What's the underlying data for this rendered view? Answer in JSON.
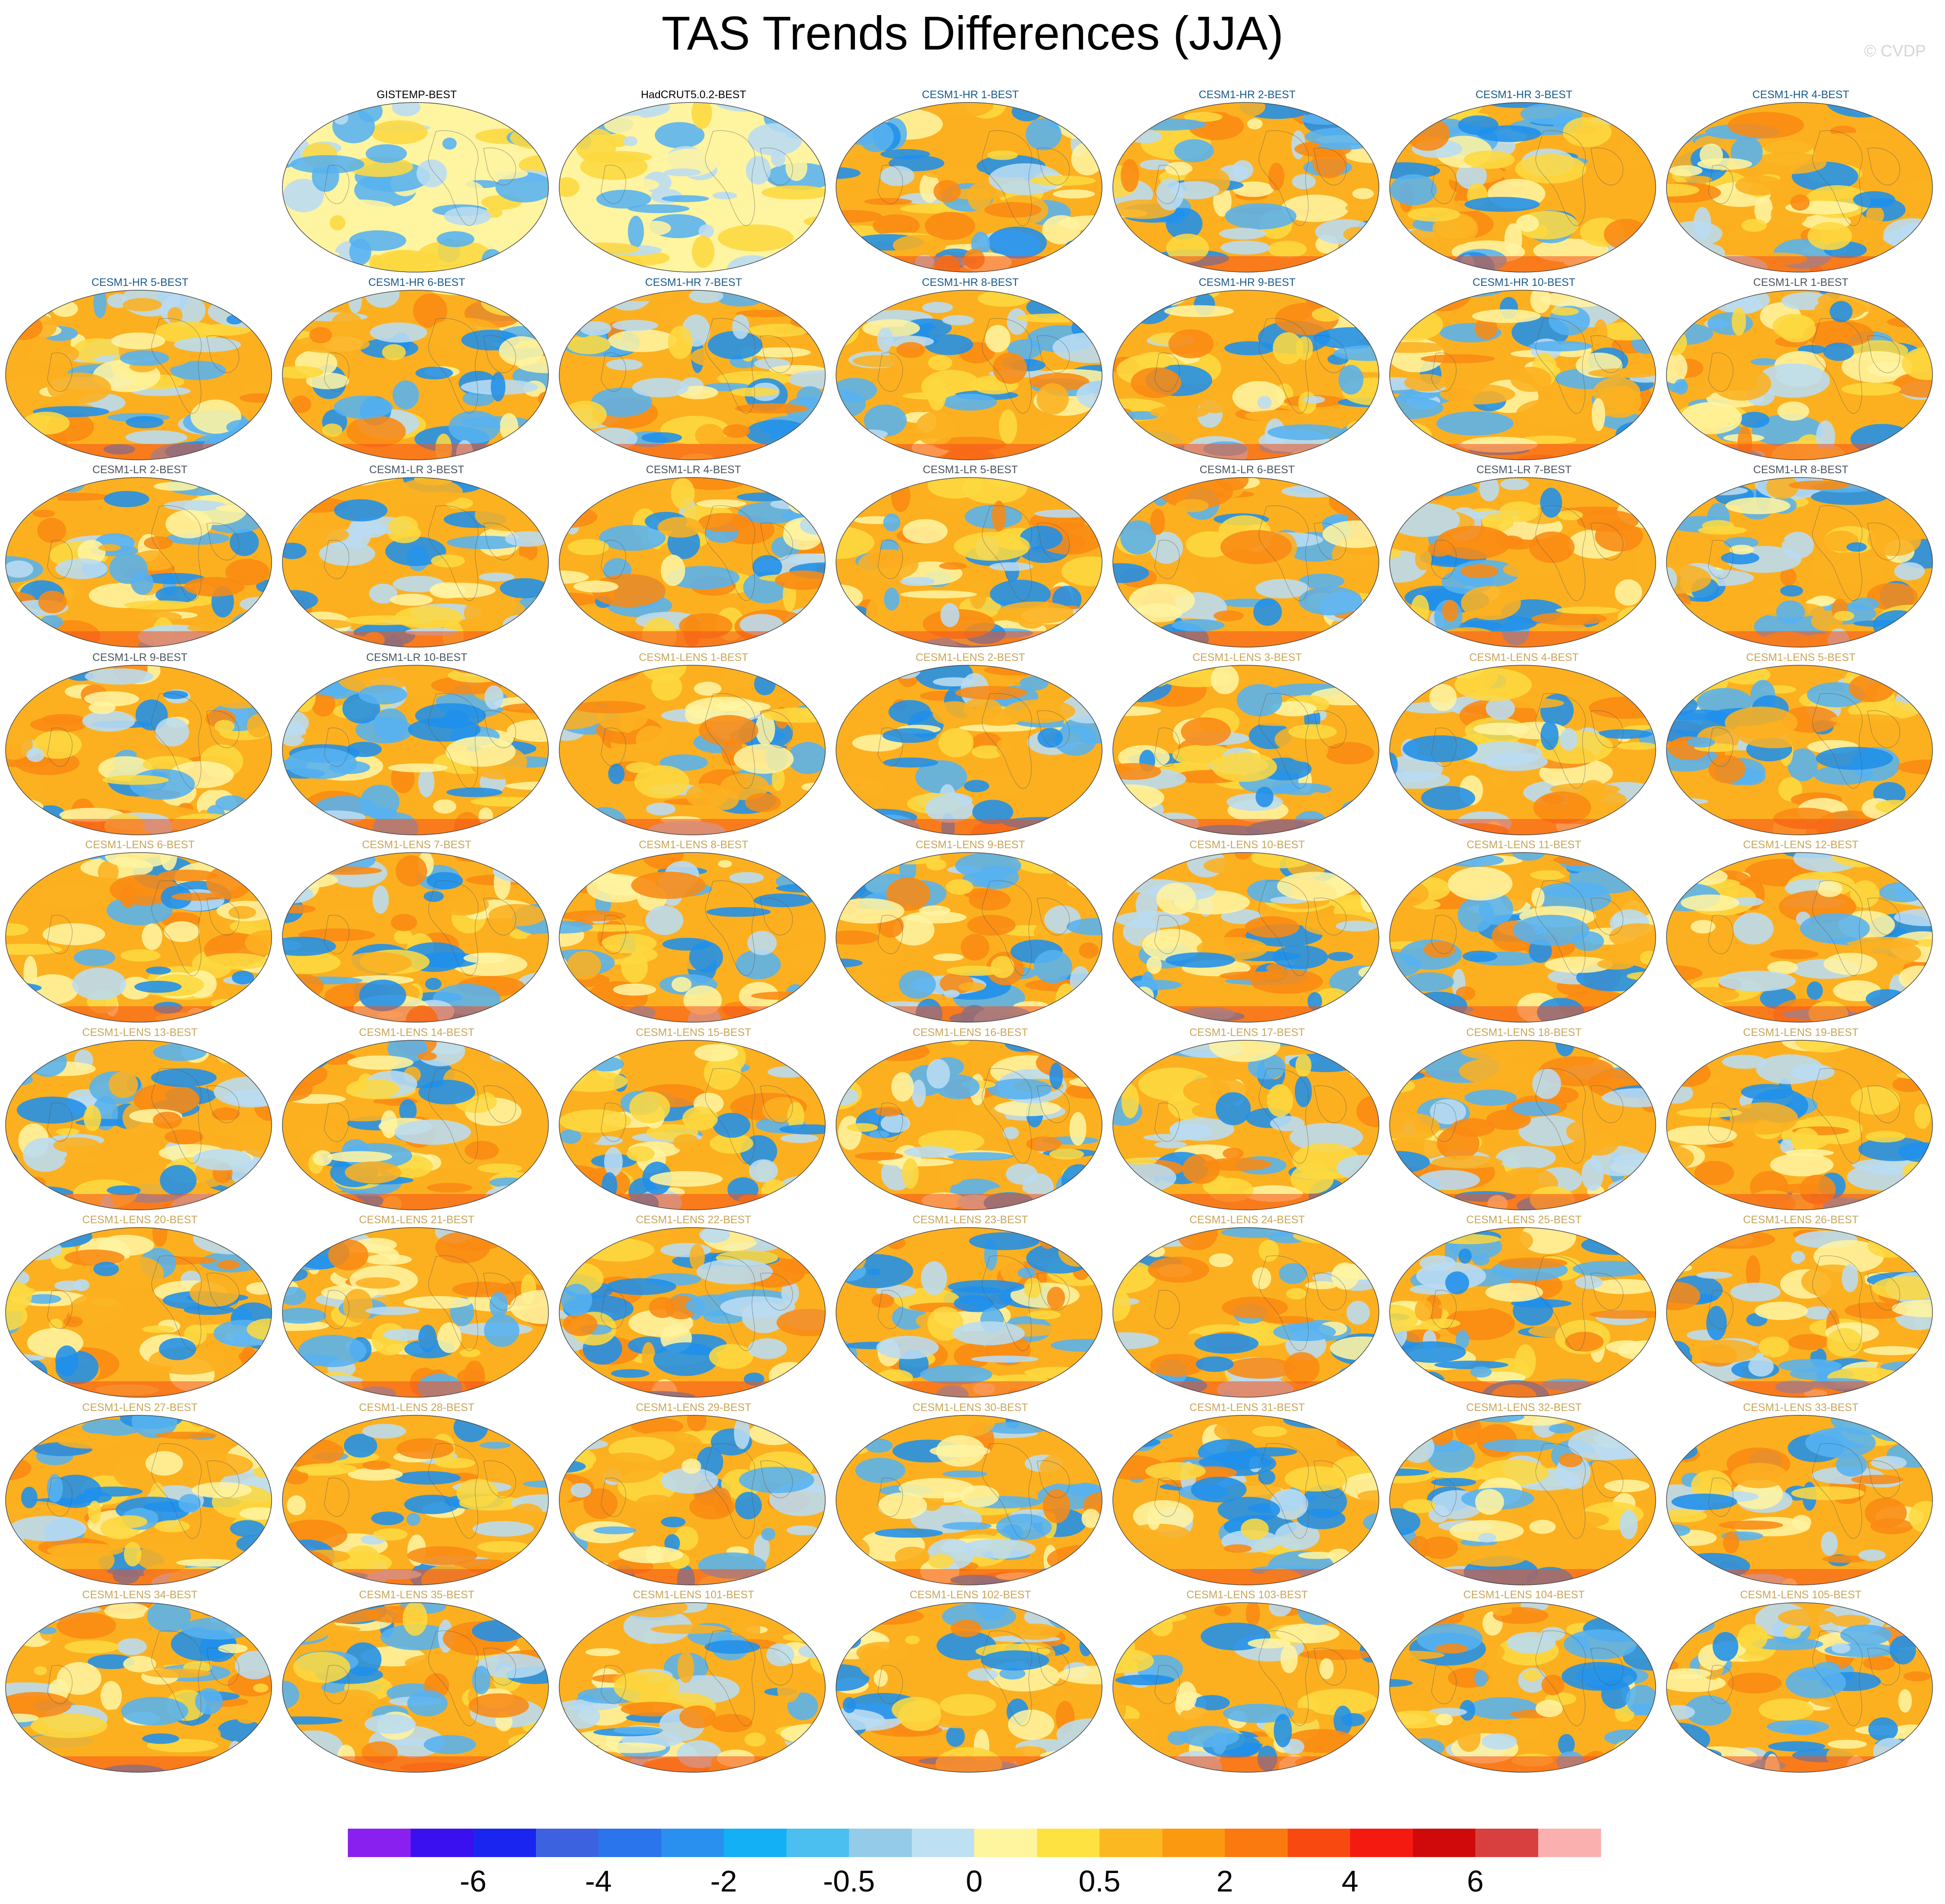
{
  "title": "TAS Trends Differences (JJA)",
  "copyright": "© CVDP",
  "grid": {
    "columns": 7,
    "rows": 9,
    "first_row_empty_columns": 1
  },
  "title_colors": {
    "obs": "#000000",
    "CESM1-HR": "#1a5a8a",
    "CESM1-LR": "#4a5560",
    "CESM1-LENS": "#c8a65a"
  },
  "panels": [
    {
      "title": "GISTEMP-BEST",
      "group": "obs"
    },
    {
      "title": "HadCRUT5.0.2-BEST",
      "group": "obs"
    },
    {
      "title": "CESM1-HR 1-BEST",
      "group": "CESM1-HR"
    },
    {
      "title": "CESM1-HR 2-BEST",
      "group": "CESM1-HR"
    },
    {
      "title": "CESM1-HR 3-BEST",
      "group": "CESM1-HR"
    },
    {
      "title": "CESM1-HR 4-BEST",
      "group": "CESM1-HR"
    },
    {
      "title": "CESM1-HR 5-BEST",
      "group": "CESM1-HR"
    },
    {
      "title": "CESM1-HR 6-BEST",
      "group": "CESM1-HR"
    },
    {
      "title": "CESM1-HR 7-BEST",
      "group": "CESM1-HR"
    },
    {
      "title": "CESM1-HR 8-BEST",
      "group": "CESM1-HR"
    },
    {
      "title": "CESM1-HR 9-BEST",
      "group": "CESM1-HR"
    },
    {
      "title": "CESM1-HR 10-BEST",
      "group": "CESM1-HR"
    },
    {
      "title": "CESM1-LR 1-BEST",
      "group": "CESM1-LR"
    },
    {
      "title": "CESM1-LR 2-BEST",
      "group": "CESM1-LR"
    },
    {
      "title": "CESM1-LR 3-BEST",
      "group": "CESM1-LR"
    },
    {
      "title": "CESM1-LR 4-BEST",
      "group": "CESM1-LR"
    },
    {
      "title": "CESM1-LR 5-BEST",
      "group": "CESM1-LR"
    },
    {
      "title": "CESM1-LR 6-BEST",
      "group": "CESM1-LR"
    },
    {
      "title": "CESM1-LR 7-BEST",
      "group": "CESM1-LR"
    },
    {
      "title": "CESM1-LR 8-BEST",
      "group": "CESM1-LR"
    },
    {
      "title": "CESM1-LR 9-BEST",
      "group": "CESM1-LR"
    },
    {
      "title": "CESM1-LR 10-BEST",
      "group": "CESM1-LR"
    },
    {
      "title": "CESM1-LENS 1-BEST",
      "group": "CESM1-LENS"
    },
    {
      "title": "CESM1-LENS 2-BEST",
      "group": "CESM1-LENS"
    },
    {
      "title": "CESM1-LENS 3-BEST",
      "group": "CESM1-LENS"
    },
    {
      "title": "CESM1-LENS 4-BEST",
      "group": "CESM1-LENS"
    },
    {
      "title": "CESM1-LENS 5-BEST",
      "group": "CESM1-LENS"
    },
    {
      "title": "CESM1-LENS 6-BEST",
      "group": "CESM1-LENS"
    },
    {
      "title": "CESM1-LENS 7-BEST",
      "group": "CESM1-LENS"
    },
    {
      "title": "CESM1-LENS 8-BEST",
      "group": "CESM1-LENS"
    },
    {
      "title": "CESM1-LENS 9-BEST",
      "group": "CESM1-LENS"
    },
    {
      "title": "CESM1-LENS 10-BEST",
      "group": "CESM1-LENS"
    },
    {
      "title": "CESM1-LENS 11-BEST",
      "group": "CESM1-LENS"
    },
    {
      "title": "CESM1-LENS 12-BEST",
      "group": "CESM1-LENS"
    },
    {
      "title": "CESM1-LENS 13-BEST",
      "group": "CESM1-LENS"
    },
    {
      "title": "CESM1-LENS 14-BEST",
      "group": "CESM1-LENS"
    },
    {
      "title": "CESM1-LENS 15-BEST",
      "group": "CESM1-LENS"
    },
    {
      "title": "CESM1-LENS 16-BEST",
      "group": "CESM1-LENS"
    },
    {
      "title": "CESM1-LENS 17-BEST",
      "group": "CESM1-LENS"
    },
    {
      "title": "CESM1-LENS 18-BEST",
      "group": "CESM1-LENS"
    },
    {
      "title": "CESM1-LENS 19-BEST",
      "group": "CESM1-LENS"
    },
    {
      "title": "CESM1-LENS 20-BEST",
      "group": "CESM1-LENS"
    },
    {
      "title": "CESM1-LENS 21-BEST",
      "group": "CESM1-LENS"
    },
    {
      "title": "CESM1-LENS 22-BEST",
      "group": "CESM1-LENS"
    },
    {
      "title": "CESM1-LENS 23-BEST",
      "group": "CESM1-LENS"
    },
    {
      "title": "CESM1-LENS 24-BEST",
      "group": "CESM1-LENS"
    },
    {
      "title": "CESM1-LENS 25-BEST",
      "group": "CESM1-LENS"
    },
    {
      "title": "CESM1-LENS 26-BEST",
      "group": "CESM1-LENS"
    },
    {
      "title": "CESM1-LENS 27-BEST",
      "group": "CESM1-LENS"
    },
    {
      "title": "CESM1-LENS 28-BEST",
      "group": "CESM1-LENS"
    },
    {
      "title": "CESM1-LENS 29-BEST",
      "group": "CESM1-LENS"
    },
    {
      "title": "CESM1-LENS 30-BEST",
      "group": "CESM1-LENS"
    },
    {
      "title": "CESM1-LENS 31-BEST",
      "group": "CESM1-LENS"
    },
    {
      "title": "CESM1-LENS 32-BEST",
      "group": "CESM1-LENS"
    },
    {
      "title": "CESM1-LENS 33-BEST",
      "group": "CESM1-LENS"
    },
    {
      "title": "CESM1-LENS 34-BEST",
      "group": "CESM1-LENS"
    },
    {
      "title": "CESM1-LENS 35-BEST",
      "group": "CESM1-LENS"
    },
    {
      "title": "CESM1-LENS 101-BEST",
      "group": "CESM1-LENS"
    },
    {
      "title": "CESM1-LENS 102-BEST",
      "group": "CESM1-LENS"
    },
    {
      "title": "CESM1-LENS 103-BEST",
      "group": "CESM1-LENS"
    },
    {
      "title": "CESM1-LENS 104-BEST",
      "group": "CESM1-LENS"
    },
    {
      "title": "CESM1-LENS 105-BEST",
      "group": "CESM1-LENS"
    }
  ],
  "colorbar": {
    "colors": [
      "#8a20f0",
      "#3a10f0",
      "#1a25f0",
      "#3c62e0",
      "#2a74ec",
      "#2a90f0",
      "#13b0f5",
      "#4abff0",
      "#93cbe8",
      "#bde0f3",
      "#fff59e",
      "#fde242",
      "#fcb820",
      "#fb9a10",
      "#fb7a10",
      "#f84a10",
      "#f51a10",
      "#d00a0a",
      "#d84040",
      "#fbb0b0"
    ],
    "labels": [
      {
        "text": "-6",
        "boundary": 2
      },
      {
        "text": "-4",
        "boundary": 4
      },
      {
        "text": "-2",
        "boundary": 6
      },
      {
        "text": "-0.5",
        "boundary": 8
      },
      {
        "text": "0",
        "boundary": 10
      },
      {
        "text": "0.5",
        "boundary": 12
      },
      {
        "text": "2",
        "boundary": 14
      },
      {
        "text": "4",
        "boundary": 16
      },
      {
        "text": "6",
        "boundary": 18
      }
    ]
  }
}
